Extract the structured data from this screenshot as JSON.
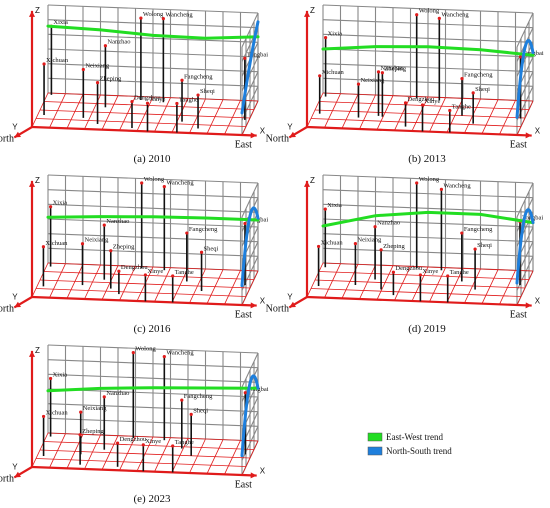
{
  "chart_data": [
    {
      "type": "scatter",
      "caption": "(a) 2010",
      "axes": {
        "x": "X",
        "y": "Y",
        "z": "Z",
        "east": "East",
        "north": "North"
      },
      "sites": [
        {
          "name": "Xixia",
          "x": 0.02,
          "y": 0.95,
          "z": 0.78
        },
        {
          "name": "Wolong",
          "x": 0.45,
          "y": 0.9,
          "z": 0.93
        },
        {
          "name": "Wancheng",
          "x": 0.56,
          "y": 0.86,
          "z": 0.95
        },
        {
          "name": "Nanzhao",
          "x": 0.3,
          "y": 0.65,
          "z": 0.7
        },
        {
          "name": "Xichuan",
          "x": 0.03,
          "y": 0.36,
          "z": 0.58
        },
        {
          "name": "Neixiang",
          "x": 0.22,
          "y": 0.32,
          "z": 0.55
        },
        {
          "name": "Zheping",
          "x": 0.3,
          "y": 0.16,
          "z": 0.47
        },
        {
          "name": "Dengzhou",
          "x": 0.47,
          "y": 0.08,
          "z": 0.3
        },
        {
          "name": "Fangcheng",
          "x": 0.69,
          "y": 0.32,
          "z": 0.47
        },
        {
          "name": "Sheqi",
          "x": 0.78,
          "y": 0.14,
          "z": 0.38
        },
        {
          "name": "Tongbai",
          "x": 0.98,
          "y": 0.44,
          "z": 0.7
        },
        {
          "name": "Xinye",
          "x": 0.55,
          "y": 0.0,
          "z": 0.32
        },
        {
          "name": "Tanghe",
          "x": 0.69,
          "y": 0.0,
          "z": 0.33
        }
      ],
      "trend_ew": [
        0.76,
        0.74,
        0.7,
        0.69,
        0.73
      ],
      "trend_ns": [
        0.9,
        0.62,
        0.25
      ]
    },
    {
      "type": "scatter",
      "caption": "(b) 2013",
      "axes": {
        "x": "X",
        "y": "Y",
        "z": "Z",
        "east": "East",
        "north": "North"
      },
      "sites": [
        {
          "name": "Xixia",
          "x": 0.02,
          "y": 0.9,
          "z": 0.67
        },
        {
          "name": "Wolong",
          "x": 0.45,
          "y": 0.95,
          "z": 0.95
        },
        {
          "name": "Wancheng",
          "x": 0.56,
          "y": 0.92,
          "z": 0.93
        },
        {
          "name": "Nanzhao",
          "x": 0.31,
          "y": 0.4,
          "z": 0.5
        },
        {
          "name": "Xichuan",
          "x": 0.03,
          "y": 0.4,
          "z": 0.43
        },
        {
          "name": "Neixiang",
          "x": 0.22,
          "y": 0.33,
          "z": 0.38
        },
        {
          "name": "Zheping",
          "x": 0.33,
          "y": 0.38,
          "z": 0.5
        },
        {
          "name": "Dengzhou",
          "x": 0.46,
          "y": 0.12,
          "z": 0.27
        },
        {
          "name": "Fangcheng",
          "x": 0.7,
          "y": 0.5,
          "z": 0.42
        },
        {
          "name": "Sheqi",
          "x": 0.77,
          "y": 0.28,
          "z": 0.35
        },
        {
          "name": "Tongbai",
          "x": 0.98,
          "y": 0.48,
          "z": 0.7
        },
        {
          "name": "Xinye",
          "x": 0.55,
          "y": 0.0,
          "z": 0.3
        },
        {
          "name": "Tanghe",
          "x": 0.68,
          "y": 0.0,
          "z": 0.25
        }
      ],
      "trend_ew": [
        0.5,
        0.55,
        0.57,
        0.56,
        0.52
      ],
      "trend_ns": [
        0.55,
        0.8,
        0.2
      ]
    },
    {
      "type": "scatter",
      "caption": "(c) 2016",
      "axes": {
        "x": "X",
        "y": "Y",
        "z": "Z",
        "east": "East",
        "north": "North"
      },
      "sites": [
        {
          "name": "Xixia",
          "x": 0.02,
          "y": 0.9,
          "z": 0.68
        },
        {
          "name": "Wolong",
          "x": 0.45,
          "y": 0.95,
          "z": 0.97
        },
        {
          "name": "Wancheng",
          "x": 0.56,
          "y": 0.92,
          "z": 0.95
        },
        {
          "name": "Nanzhao",
          "x": 0.3,
          "y": 0.58,
          "z": 0.62
        },
        {
          "name": "Xichuan",
          "x": 0.03,
          "y": 0.32,
          "z": 0.45
        },
        {
          "name": "Neixiang",
          "x": 0.21,
          "y": 0.4,
          "z": 0.47
        },
        {
          "name": "Zheping",
          "x": 0.35,
          "y": 0.33,
          "z": 0.43
        },
        {
          "name": "Dengzhou",
          "x": 0.4,
          "y": 0.18,
          "z": 0.26
        },
        {
          "name": "Fangcheng",
          "x": 0.69,
          "y": 0.62,
          "z": 0.55
        },
        {
          "name": "Sheqi",
          "x": 0.78,
          "y": 0.36,
          "z": 0.44
        },
        {
          "name": "Tongbai",
          "x": 0.97,
          "y": 0.58,
          "z": 0.7
        },
        {
          "name": "Xinye",
          "x": 0.54,
          "y": 0.0,
          "z": 0.3
        },
        {
          "name": "Tanghe",
          "x": 0.67,
          "y": 0.0,
          "z": 0.3
        }
      ],
      "trend_ew": [
        0.52,
        0.55,
        0.57,
        0.58,
        0.58
      ],
      "trend_ns": [
        0.6,
        0.82,
        0.22
      ]
    },
    {
      "type": "scatter",
      "caption": "(d) 2019",
      "axes": {
        "x": "X",
        "y": "Y",
        "z": "Z",
        "east": "East",
        "north": "North"
      },
      "sites": [
        {
          "name": "Xixia",
          "x": 0.02,
          "y": 0.88,
          "z": 0.66
        },
        {
          "name": "Wolong",
          "x": 0.45,
          "y": 0.95,
          "z": 0.97
        },
        {
          "name": "Wancheng",
          "x": 0.57,
          "y": 0.92,
          "z": 0.92
        },
        {
          "name": "Nanzhao",
          "x": 0.28,
          "y": 0.58,
          "z": 0.6
        },
        {
          "name": "Xichuan",
          "x": 0.03,
          "y": 0.33,
          "z": 0.45
        },
        {
          "name": "Neixiang",
          "x": 0.2,
          "y": 0.4,
          "z": 0.47
        },
        {
          "name": "Zheping",
          "x": 0.33,
          "y": 0.3,
          "z": 0.45
        },
        {
          "name": "Dengzhou",
          "x": 0.4,
          "y": 0.15,
          "z": 0.26
        },
        {
          "name": "Fangcheng",
          "x": 0.69,
          "y": 0.62,
          "z": 0.55
        },
        {
          "name": "Sheqi",
          "x": 0.77,
          "y": 0.4,
          "z": 0.46
        },
        {
          "name": "Tongbai",
          "x": 0.97,
          "y": 0.58,
          "z": 0.72
        },
        {
          "name": "Xinye",
          "x": 0.54,
          "y": 0.0,
          "z": 0.3
        },
        {
          "name": "Tanghe",
          "x": 0.67,
          "y": 0.0,
          "z": 0.3
        }
      ],
      "trend_ew": [
        0.42,
        0.56,
        0.62,
        0.62,
        0.55
      ],
      "trend_ns": [
        0.55,
        0.82,
        0.25
      ]
    },
    {
      "type": "scatter",
      "caption": "(e) 2023",
      "axes": {
        "x": "X",
        "y": "Y",
        "z": "Z",
        "east": "East",
        "north": "North"
      },
      "sites": [
        {
          "name": "Xixia",
          "x": 0.02,
          "y": 0.9,
          "z": 0.66
        },
        {
          "name": "Wolong",
          "x": 0.41,
          "y": 0.95,
          "z": 0.97
        },
        {
          "name": "Wancheng",
          "x": 0.56,
          "y": 0.92,
          "z": 0.95
        },
        {
          "name": "Nanzhao",
          "x": 0.3,
          "y": 0.58,
          "z": 0.6
        },
        {
          "name": "Xichuan",
          "x": 0.03,
          "y": 0.33,
          "z": 0.45
        },
        {
          "name": "Neixiang",
          "x": 0.2,
          "y": 0.42,
          "z": 0.48
        },
        {
          "name": "Zheping",
          "x": 0.22,
          "y": 0.12,
          "z": 0.34
        },
        {
          "name": "Dengzhou",
          "x": 0.4,
          "y": 0.1,
          "z": 0.27
        },
        {
          "name": "Fangcheng",
          "x": 0.66,
          "y": 0.7,
          "z": 0.55
        },
        {
          "name": "Sheqi",
          "x": 0.72,
          "y": 0.5,
          "z": 0.47
        },
        {
          "name": "Tongbai",
          "x": 0.97,
          "y": 0.6,
          "z": 0.7
        },
        {
          "name": "Xinye",
          "x": 0.53,
          "y": 0.0,
          "z": 0.3
        },
        {
          "name": "Tanghe",
          "x": 0.67,
          "y": 0.0,
          "z": 0.3
        }
      ],
      "trend_ew": [
        0.48,
        0.53,
        0.56,
        0.58,
        0.6
      ],
      "trend_ns": [
        0.6,
        0.85,
        0.22
      ]
    }
  ],
  "legend": [
    {
      "label": "East-West trend",
      "color": "#22dd22"
    },
    {
      "label": "North-South trend",
      "color": "#1e7fdc"
    }
  ],
  "colors": {
    "grid": "#888888",
    "axis": "#e01b1b",
    "stem": "#111111",
    "point": "#e01b1b",
    "ew": "#22dd22",
    "ns": "#1e7fdc"
  }
}
